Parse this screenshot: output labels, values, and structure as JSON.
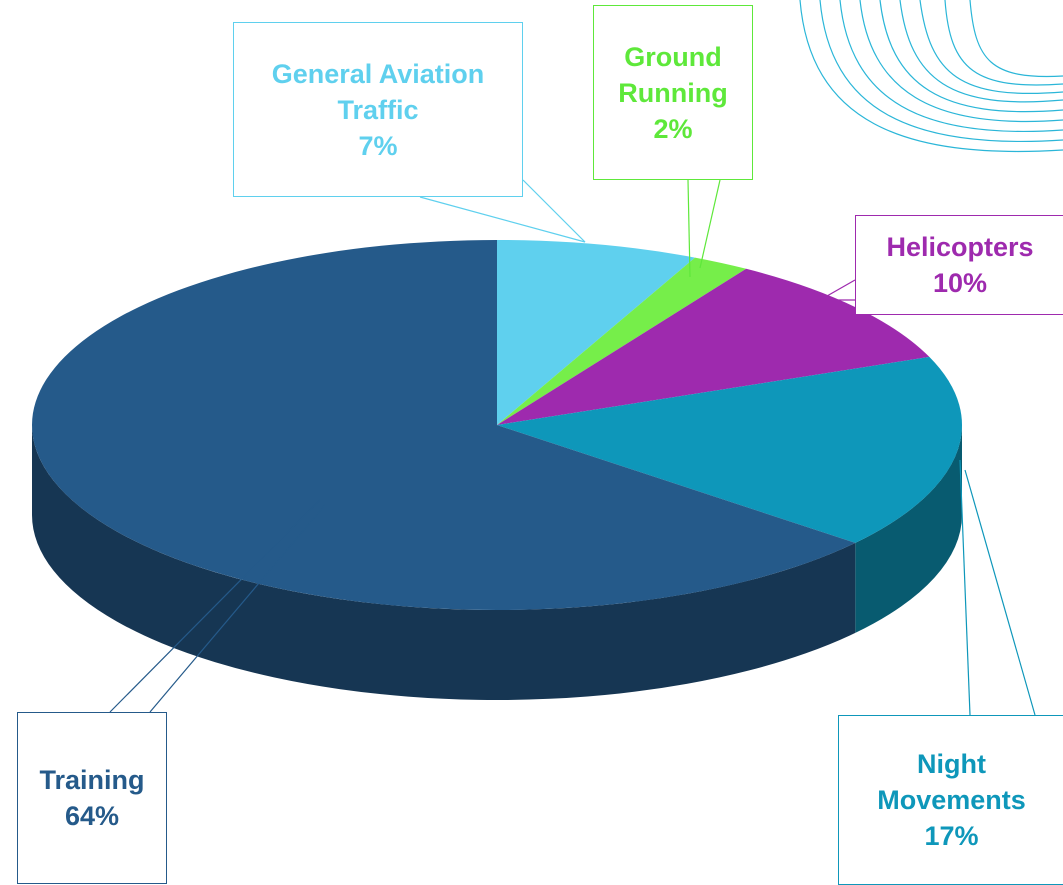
{
  "chart_data": {
    "type": "pie",
    "categories": [
      "General Aviation Traffic",
      "Ground Running",
      "Helicopters",
      "Night Movements",
      "Training"
    ],
    "values": [
      7,
      2,
      10,
      17,
      64
    ],
    "value_labels": [
      "7%",
      "2%",
      "10%",
      "17%",
      "64%"
    ],
    "colors": [
      "#5fd0ee",
      "#76ee4a",
      "#9e2aae",
      "#0e97ba",
      "#255a8a"
    ],
    "label_colors": [
      "#5fd0ee",
      "#5ee83a",
      "#9e2aae",
      "#0e97ba",
      "#255a8a"
    ]
  }
}
